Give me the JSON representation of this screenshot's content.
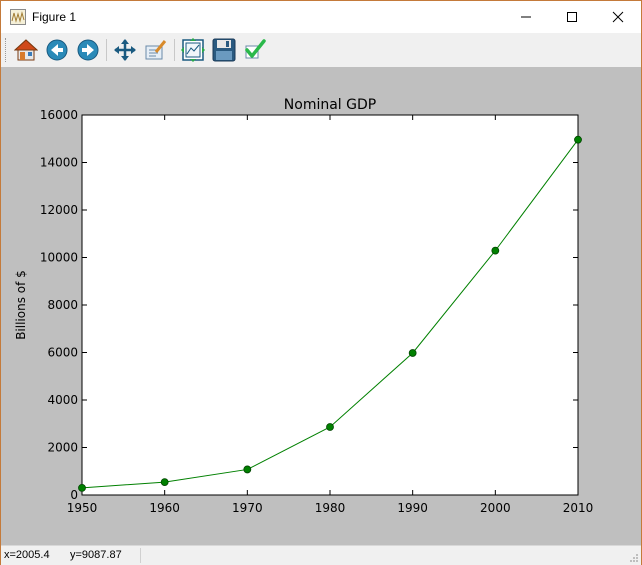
{
  "window": {
    "title": "Figure 1"
  },
  "toolbar": {
    "buttons": [
      {
        "icon": "home-icon"
      },
      {
        "icon": "back-icon"
      },
      {
        "icon": "forward-icon"
      },
      {
        "icon": "pan-icon"
      },
      {
        "icon": "zoom-icon"
      },
      {
        "icon": "configure-subplots-icon"
      },
      {
        "icon": "save-icon"
      },
      {
        "icon": "edit-parameters-icon"
      }
    ]
  },
  "statusbar": {
    "x": "x=2005.4",
    "y": "y=9087.87"
  },
  "chart_data": {
    "type": "line",
    "title": "Nominal GDP",
    "xlabel": "",
    "ylabel": "Billions of $",
    "x": [
      1950,
      1960,
      1970,
      1980,
      1990,
      2000,
      2010
    ],
    "series": [
      {
        "values": [
          300,
          543,
          1076,
          2863,
          5980,
          10290,
          14960
        ],
        "color": "#008000"
      }
    ],
    "xlim": [
      1950,
      2010
    ],
    "ylim": [
      0,
      16000
    ],
    "xticks": [
      "1950",
      "1960",
      "1970",
      "1980",
      "1990",
      "2000",
      "2010"
    ],
    "yticks": [
      "0",
      "2000",
      "4000",
      "6000",
      "8000",
      "10000",
      "12000",
      "14000",
      "16000"
    ],
    "grid": false
  }
}
